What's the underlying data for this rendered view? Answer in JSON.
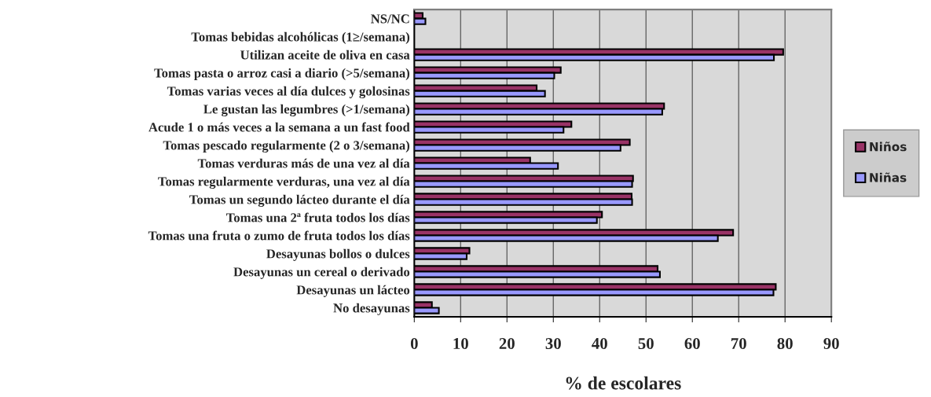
{
  "chart_data": {
    "type": "bar",
    "orientation": "horizontal",
    "xlabel": "% de escolares",
    "categories": [
      "NS/NC",
      "Tomas bebidas alcohólicas (1≥/semana)",
      "Utilizan aceite de oliva en casa",
      "Tomas pasta o arroz casi a diario (>5/semana)",
      "Tomas varias veces al día dulces y golosinas",
      "Le gustan las legumbres (>1/semana)",
      "Acude 1 o más veces a la semana a un fast food",
      "Tomas pescado regularmente (2 o 3/semana)",
      "Tomas verduras más de una vez al día",
      "Tomas regularmente verduras, una vez al día",
      "Tomas un segundo lácteo durante el día",
      "Tomas una 2ª fruta todos los días",
      "Tomas una fruta o zumo de fruta todos los días",
      "Desayunas bollos o dulces",
      "Desayunas un cereal o derivado",
      "Desayunas un lácteo",
      "No desayunas"
    ],
    "series": [
      {
        "name": "Niños",
        "color": "#993366",
        "values": [
          1.8,
          null,
          79.6,
          31.6,
          26.4,
          53.9,
          33.9,
          46.5,
          25.0,
          47.2,
          46.9,
          40.5,
          68.8,
          11.9,
          52.5,
          78.0,
          3.8
        ]
      },
      {
        "name": "Niñas",
        "color": "#9999ff",
        "values": [
          2.4,
          null,
          77.6,
          30.2,
          28.2,
          53.5,
          32.2,
          44.5,
          31.0,
          47.0,
          47.0,
          39.4,
          65.5,
          11.3,
          53.0,
          77.5,
          5.3
        ]
      }
    ],
    "xlim": [
      0,
      90
    ],
    "xticks": [
      0,
      10,
      20,
      30,
      40,
      50,
      60,
      70,
      80,
      90
    ],
    "grid": "x",
    "legend": "right"
  }
}
